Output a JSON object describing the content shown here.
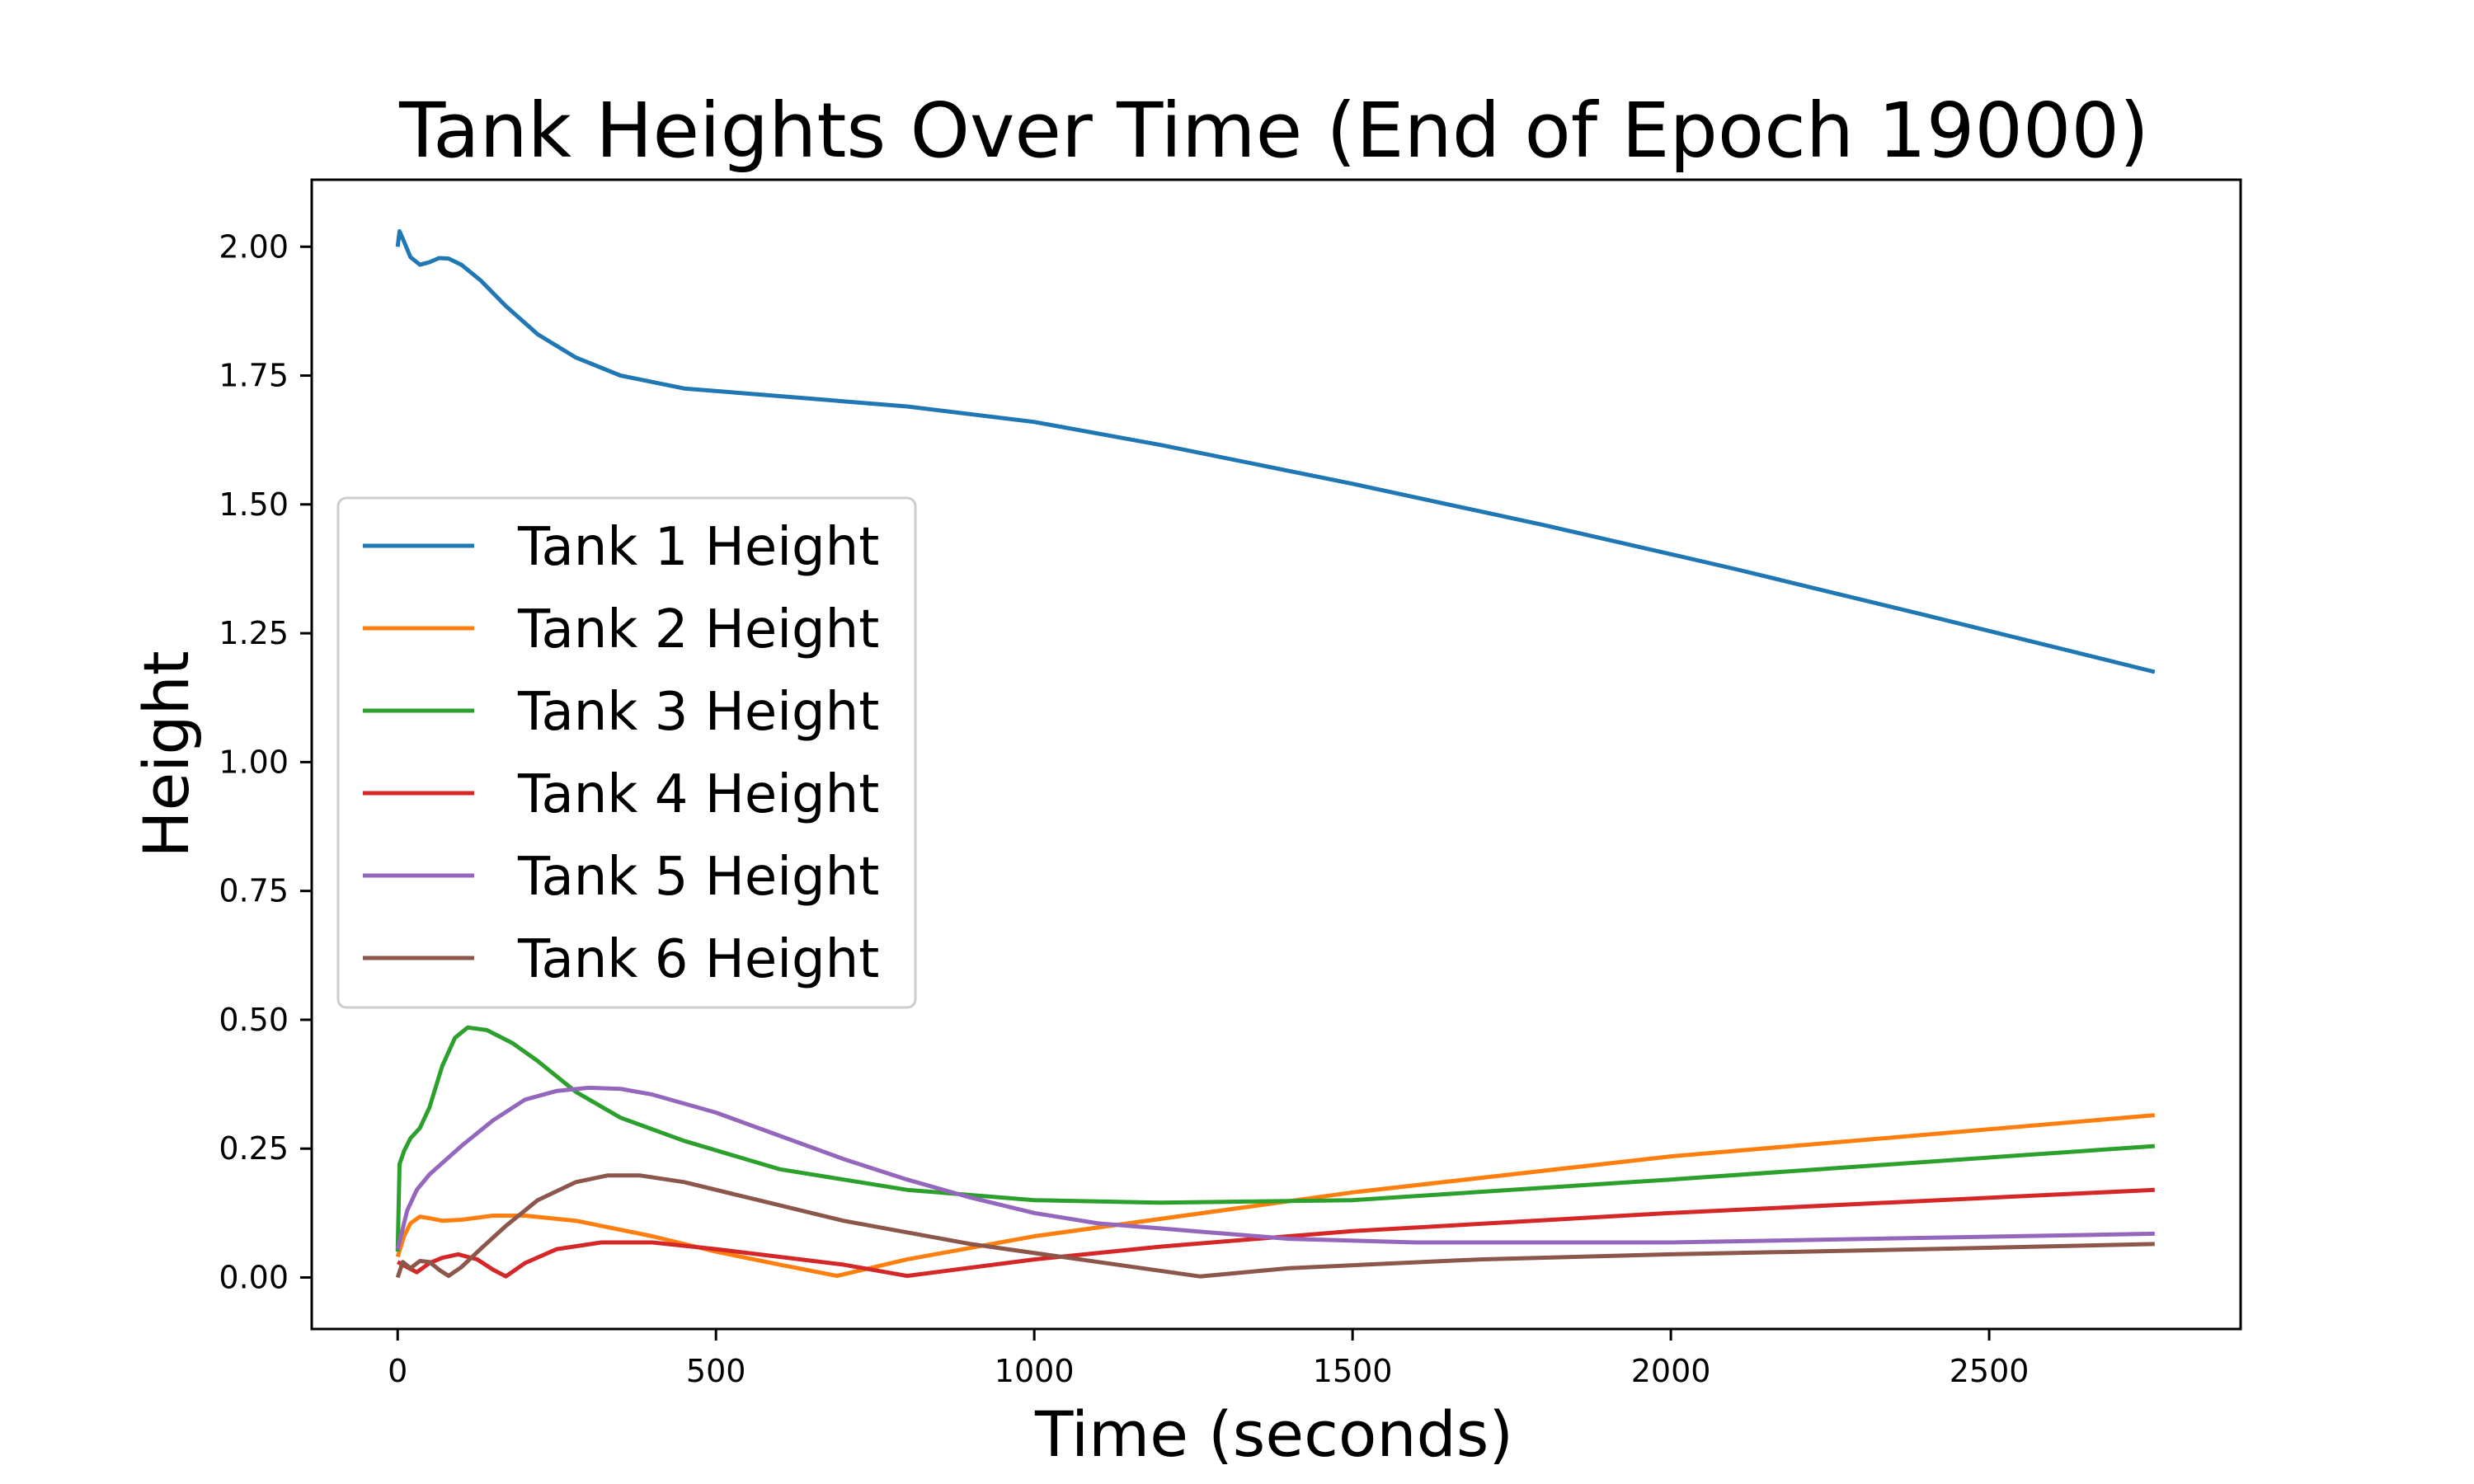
{
  "chart_data": {
    "type": "line",
    "title": "Tank Heights Over Time (End of Epoch 19000)",
    "xlabel": "Time (seconds)",
    "ylabel": "Height",
    "xlim": [
      -135,
      2895
    ],
    "ylim": [
      -0.1,
      2.13
    ],
    "xticks": [
      0,
      500,
      1000,
      1500,
      2000,
      2500
    ],
    "xtick_labels": [
      "0",
      "500",
      "1000",
      "1500",
      "2000",
      "2500"
    ],
    "yticks": [
      0.0,
      0.25,
      0.5,
      0.75,
      1.0,
      1.25,
      1.5,
      1.75,
      2.0
    ],
    "ytick_labels": [
      "0.00",
      "0.25",
      "0.50",
      "0.75",
      "1.00",
      "1.25",
      "1.50",
      "1.75",
      "2.00"
    ],
    "grid": false,
    "legend_position": "center-left",
    "series": [
      {
        "name": "Tank 1 Height",
        "color": "#1f77b4",
        "points": [
          [
            0,
            2.0
          ],
          [
            3,
            2.03
          ],
          [
            10,
            2.01
          ],
          [
            20,
            1.98
          ],
          [
            35,
            1.965
          ],
          [
            50,
            1.97
          ],
          [
            65,
            1.978
          ],
          [
            80,
            1.977
          ],
          [
            100,
            1.965
          ],
          [
            130,
            1.935
          ],
          [
            170,
            1.885
          ],
          [
            220,
            1.83
          ],
          [
            280,
            1.785
          ],
          [
            350,
            1.75
          ],
          [
            450,
            1.725
          ],
          [
            600,
            1.71
          ],
          [
            800,
            1.69
          ],
          [
            1000,
            1.66
          ],
          [
            1200,
            1.615
          ],
          [
            1500,
            1.54
          ],
          [
            1800,
            1.46
          ],
          [
            2100,
            1.375
          ],
          [
            2400,
            1.285
          ],
          [
            2760,
            1.175
          ]
        ]
      },
      {
        "name": "Tank 2 Height",
        "color": "#ff7f0e",
        "points": [
          [
            0,
            0.04
          ],
          [
            10,
            0.08
          ],
          [
            20,
            0.105
          ],
          [
            35,
            0.118
          ],
          [
            50,
            0.115
          ],
          [
            70,
            0.11
          ],
          [
            100,
            0.112
          ],
          [
            150,
            0.12
          ],
          [
            200,
            0.12
          ],
          [
            280,
            0.11
          ],
          [
            400,
            0.08
          ],
          [
            500,
            0.05
          ],
          [
            600,
            0.025
          ],
          [
            690,
            0.003
          ],
          [
            800,
            0.035
          ],
          [
            1000,
            0.08
          ],
          [
            1500,
            0.165
          ],
          [
            2000,
            0.235
          ],
          [
            2760,
            0.315
          ]
        ]
      },
      {
        "name": "Tank 3 Height",
        "color": "#2ca02c",
        "points": [
          [
            0,
            0.05
          ],
          [
            3,
            0.22
          ],
          [
            10,
            0.245
          ],
          [
            20,
            0.27
          ],
          [
            35,
            0.29
          ],
          [
            50,
            0.33
          ],
          [
            70,
            0.41
          ],
          [
            90,
            0.465
          ],
          [
            110,
            0.485
          ],
          [
            140,
            0.48
          ],
          [
            180,
            0.455
          ],
          [
            220,
            0.42
          ],
          [
            280,
            0.36
          ],
          [
            350,
            0.31
          ],
          [
            450,
            0.265
          ],
          [
            600,
            0.21
          ],
          [
            800,
            0.17
          ],
          [
            1000,
            0.15
          ],
          [
            1200,
            0.145
          ],
          [
            1500,
            0.15
          ],
          [
            2000,
            0.19
          ],
          [
            2760,
            0.255
          ]
        ]
      },
      {
        "name": "Tank 4 Height",
        "color": "#d62728",
        "points": [
          [
            0,
            0.03
          ],
          [
            15,
            0.02
          ],
          [
            30,
            0.01
          ],
          [
            50,
            0.028
          ],
          [
            70,
            0.038
          ],
          [
            95,
            0.045
          ],
          [
            125,
            0.035
          ],
          [
            150,
            0.015
          ],
          [
            170,
            0.002
          ],
          [
            200,
            0.028
          ],
          [
            250,
            0.055
          ],
          [
            320,
            0.068
          ],
          [
            400,
            0.068
          ],
          [
            500,
            0.055
          ],
          [
            700,
            0.025
          ],
          [
            800,
            0.003
          ],
          [
            1000,
            0.035
          ],
          [
            1200,
            0.06
          ],
          [
            1500,
            0.09
          ],
          [
            2000,
            0.125
          ],
          [
            2760,
            0.17
          ]
        ]
      },
      {
        "name": "Tank 5 Height",
        "color": "#9467bd",
        "points": [
          [
            0,
            0.055
          ],
          [
            15,
            0.13
          ],
          [
            30,
            0.17
          ],
          [
            50,
            0.2
          ],
          [
            100,
            0.255
          ],
          [
            150,
            0.305
          ],
          [
            200,
            0.345
          ],
          [
            250,
            0.362
          ],
          [
            300,
            0.368
          ],
          [
            350,
            0.366
          ],
          [
            400,
            0.355
          ],
          [
            500,
            0.32
          ],
          [
            600,
            0.275
          ],
          [
            700,
            0.23
          ],
          [
            800,
            0.19
          ],
          [
            900,
            0.155
          ],
          [
            1000,
            0.125
          ],
          [
            1100,
            0.105
          ],
          [
            1250,
            0.09
          ],
          [
            1400,
            0.075
          ],
          [
            1600,
            0.068
          ],
          [
            2000,
            0.068
          ],
          [
            2760,
            0.085
          ]
        ]
      },
      {
        "name": "Tank 6 Height",
        "color": "#8c564b",
        "points": [
          [
            0,
            0.0
          ],
          [
            8,
            0.03
          ],
          [
            20,
            0.018
          ],
          [
            35,
            0.032
          ],
          [
            50,
            0.03
          ],
          [
            65,
            0.015
          ],
          [
            80,
            0.003
          ],
          [
            100,
            0.02
          ],
          [
            130,
            0.055
          ],
          [
            170,
            0.1
          ],
          [
            220,
            0.15
          ],
          [
            280,
            0.185
          ],
          [
            330,
            0.198
          ],
          [
            380,
            0.198
          ],
          [
            450,
            0.185
          ],
          [
            550,
            0.155
          ],
          [
            700,
            0.11
          ],
          [
            900,
            0.065
          ],
          [
            1100,
            0.03
          ],
          [
            1260,
            0.002
          ],
          [
            1400,
            0.018
          ],
          [
            1700,
            0.035
          ],
          [
            2000,
            0.045
          ],
          [
            2400,
            0.055
          ],
          [
            2760,
            0.065
          ]
        ]
      }
    ]
  }
}
